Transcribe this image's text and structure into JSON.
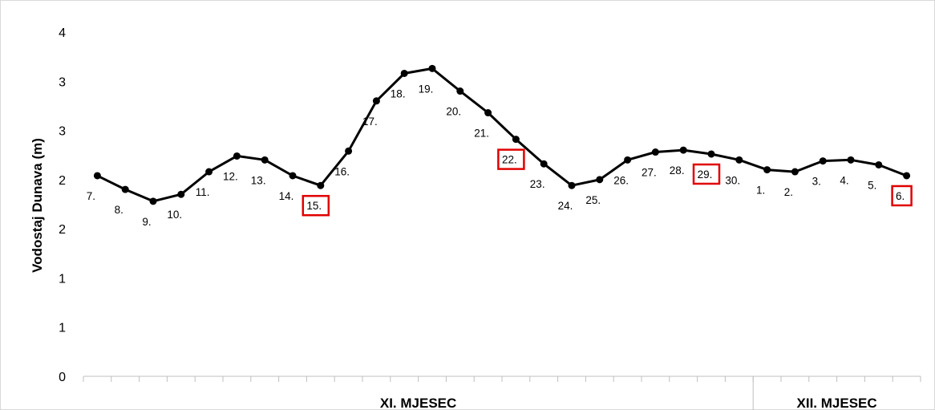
{
  "chart_data": {
    "type": "line",
    "ylabel": "Vodostaj Dunava (m)",
    "ylim": [
      0,
      3.5
    ],
    "y_ticks": [
      0,
      0.5,
      1,
      1.5,
      2,
      2.5,
      3,
      3.5
    ],
    "y_tick_labels": [
      "0",
      "1",
      "1",
      "2",
      "2",
      "3",
      "3",
      "4"
    ],
    "grid": false,
    "categories": [
      "7.",
      "8.",
      "9.",
      "10.",
      "11.",
      "12.",
      "13.",
      "14.",
      "15.",
      "16.",
      "17.",
      "18.",
      "19.",
      "20.",
      "21.",
      "22.",
      "23.",
      "24.",
      "25.",
      "26.",
      "27.",
      "28.",
      "29.",
      "30.",
      "1.",
      "2.",
      "3.",
      "4.",
      "5.",
      "6."
    ],
    "series": [
      {
        "values": [
          2.04,
          1.9,
          1.78,
          1.85,
          2.08,
          2.24,
          2.2,
          2.04,
          1.94,
          2.29,
          2.8,
          3.08,
          3.13,
          2.9,
          2.68,
          2.41,
          2.16,
          1.94,
          2.0,
          2.2,
          2.28,
          2.3,
          2.26,
          2.2,
          2.1,
          2.08,
          2.19,
          2.2,
          2.15,
          2.04
        ]
      }
    ],
    "highlighted": [
      "15.",
      "22.",
      "29.",
      "6."
    ],
    "groups": [
      {
        "label": "XI. MJESEC",
        "from": "7.",
        "to": "30."
      },
      {
        "label": "XII. MJESEC",
        "from": "1.",
        "to": "6."
      }
    ],
    "colors": {
      "line": "#000000",
      "highlight": "#e00000",
      "axis": "#bfbfbf"
    }
  }
}
